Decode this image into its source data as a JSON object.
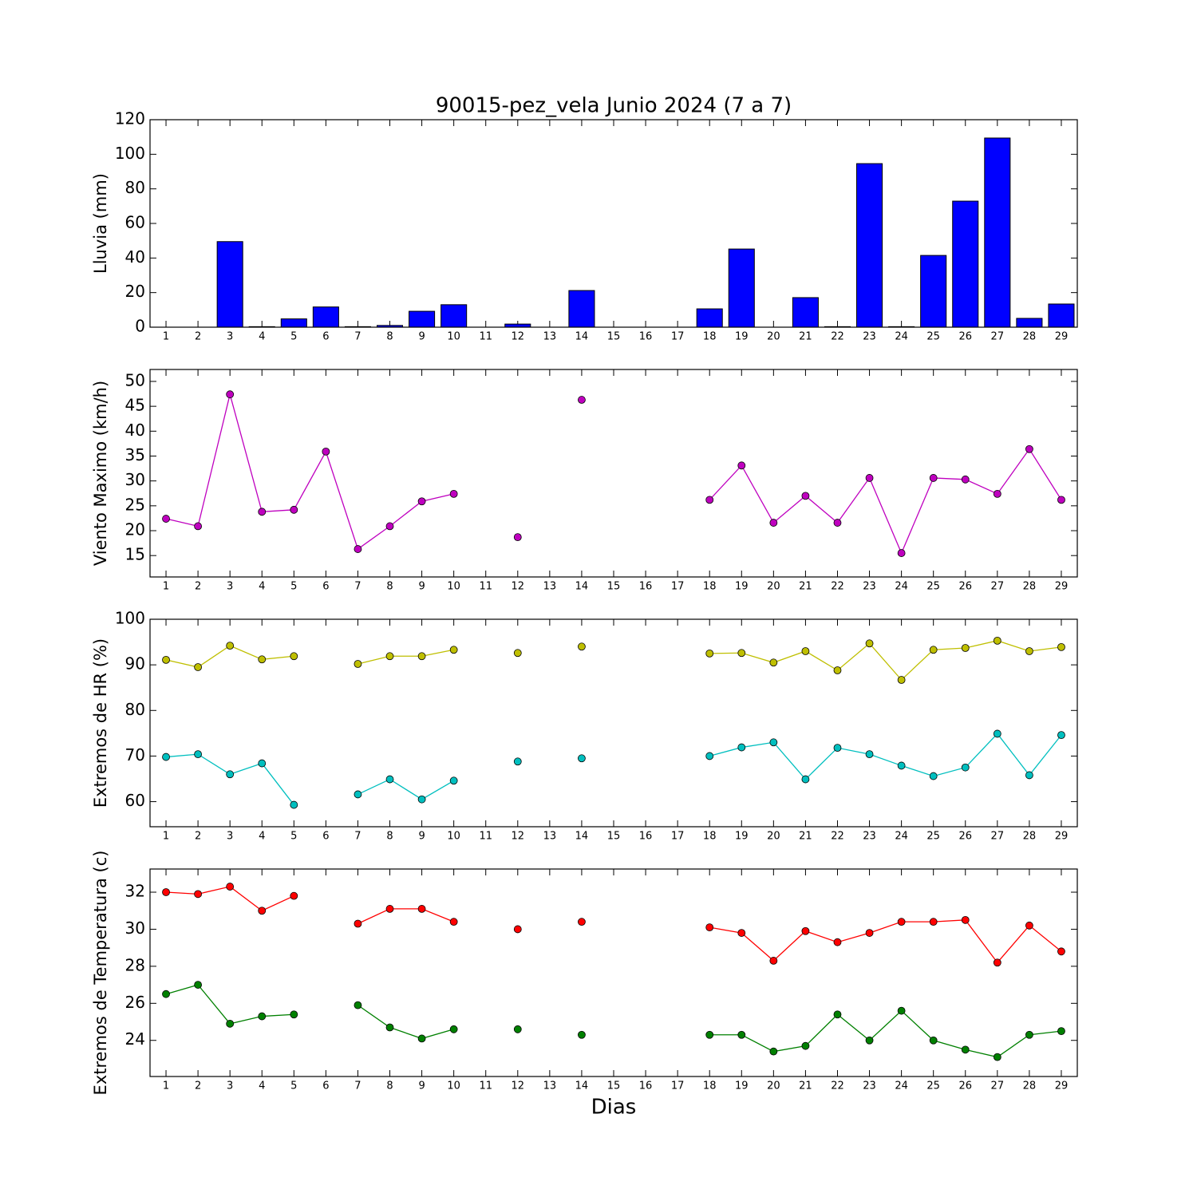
{
  "chart_data": [
    {
      "type": "bar",
      "title": "90015-pez_vela Junio 2024  (7 a 7)",
      "ylabel": "Lluvia (mm)",
      "x": [
        1,
        2,
        3,
        4,
        5,
        6,
        7,
        8,
        9,
        10,
        11,
        12,
        13,
        14,
        15,
        16,
        17,
        18,
        19,
        20,
        21,
        22,
        23,
        24,
        25,
        26,
        27,
        28,
        29
      ],
      "values": [
        0,
        0,
        49.5,
        0.3,
        4.8,
        11.7,
        0.3,
        1.0,
        9.2,
        13.0,
        0,
        1.8,
        0,
        21.2,
        0,
        0,
        0,
        10.6,
        45.2,
        0,
        17.1,
        0.3,
        94.6,
        0.3,
        41.5,
        72.9,
        109.4,
        5.1,
        13.4
      ],
      "color": "#0000ff",
      "xlim": [
        0.5,
        29.5
      ],
      "xticks": [
        1,
        2,
        3,
        4,
        5,
        6,
        7,
        8,
        9,
        10,
        11,
        12,
        13,
        14,
        15,
        16,
        17,
        18,
        19,
        20,
        21,
        22,
        23,
        24,
        25,
        26,
        27,
        28,
        29
      ],
      "ylim": [
        0,
        120
      ],
      "yticks": [
        0,
        20,
        40,
        60,
        80,
        100,
        120
      ]
    },
    {
      "type": "line",
      "ylabel": "Viento Maximo (km/h)",
      "x": [
        1,
        2,
        3,
        4,
        5,
        6,
        7,
        8,
        9,
        10,
        11,
        12,
        13,
        14,
        15,
        16,
        17,
        18,
        19,
        20,
        21,
        22,
        23,
        24,
        25,
        26,
        27,
        28,
        29
      ],
      "series": [
        {
          "color": "#bf00bf",
          "values": [
            22.4,
            20.9,
            47.4,
            23.8,
            24.2,
            35.9,
            16.3,
            20.9,
            25.9,
            27.4,
            null,
            18.7,
            null,
            46.3,
            null,
            null,
            null,
            26.2,
            33.1,
            21.6,
            27.0,
            21.6,
            30.6,
            15.5,
            30.6,
            30.3,
            27.4,
            36.4,
            26.2
          ]
        }
      ],
      "xlim": [
        0.5,
        29.5
      ],
      "xticks": [
        1,
        2,
        3,
        4,
        5,
        6,
        7,
        8,
        9,
        10,
        11,
        12,
        13,
        14,
        15,
        16,
        17,
        18,
        19,
        20,
        21,
        22,
        23,
        24,
        25,
        26,
        27,
        28,
        29
      ],
      "ylim": [
        10.7,
        52.4
      ],
      "yticks": [
        15,
        20,
        25,
        30,
        35,
        40,
        45,
        50
      ]
    },
    {
      "type": "line",
      "ylabel": "Extremos de HR (%)",
      "x": [
        1,
        2,
        3,
        4,
        5,
        6,
        7,
        8,
        9,
        10,
        11,
        12,
        13,
        14,
        15,
        16,
        17,
        18,
        19,
        20,
        21,
        22,
        23,
        24,
        25,
        26,
        27,
        28,
        29
      ],
      "series": [
        {
          "color": "#bfbf00",
          "values": [
            91.1,
            89.5,
            94.2,
            91.2,
            91.9,
            null,
            90.2,
            91.9,
            91.9,
            93.3,
            null,
            92.6,
            null,
            94.0,
            null,
            null,
            null,
            92.5,
            92.6,
            90.5,
            93.0,
            88.8,
            94.7,
            86.7,
            93.3,
            93.7,
            95.3,
            93.0,
            93.9
          ]
        },
        {
          "color": "#00bfbf",
          "values": [
            69.8,
            70.4,
            66.0,
            68.4,
            59.3,
            null,
            61.6,
            64.9,
            60.5,
            64.6,
            null,
            68.8,
            null,
            69.5,
            null,
            null,
            null,
            70.0,
            71.9,
            73.0,
            64.9,
            71.8,
            70.4,
            67.9,
            65.6,
            67.5,
            74.9,
            65.8,
            74.6
          ]
        }
      ],
      "xlim": [
        0.5,
        29.5
      ],
      "xticks": [
        1,
        2,
        3,
        4,
        5,
        6,
        7,
        8,
        9,
        10,
        11,
        12,
        13,
        14,
        15,
        16,
        17,
        18,
        19,
        20,
        21,
        22,
        23,
        24,
        25,
        26,
        27,
        28,
        29
      ],
      "ylim": [
        54.5,
        100
      ],
      "yticks": [
        60,
        70,
        80,
        90,
        100
      ]
    },
    {
      "type": "line",
      "ylabel": "Extremos de Temperatura (c)",
      "xlabel": "Dias",
      "x": [
        1,
        2,
        3,
        4,
        5,
        6,
        7,
        8,
        9,
        10,
        11,
        12,
        13,
        14,
        15,
        16,
        17,
        18,
        19,
        20,
        21,
        22,
        23,
        24,
        25,
        26,
        27,
        28,
        29
      ],
      "series": [
        {
          "color": "#ff0000",
          "values": [
            32.0,
            31.9,
            32.3,
            31.0,
            31.8,
            null,
            30.3,
            31.1,
            31.1,
            30.4,
            null,
            30.0,
            null,
            30.4,
            null,
            null,
            null,
            30.1,
            29.8,
            28.3,
            29.9,
            29.3,
            29.8,
            30.4,
            30.4,
            30.5,
            28.2,
            30.2,
            28.8
          ]
        },
        {
          "color": "#008000",
          "values": [
            26.5,
            27.0,
            24.9,
            25.3,
            25.4,
            null,
            25.9,
            24.7,
            24.1,
            24.6,
            null,
            24.6,
            null,
            24.3,
            null,
            null,
            null,
            24.3,
            24.3,
            23.4,
            23.7,
            25.4,
            24.0,
            25.6,
            24.0,
            23.5,
            23.1,
            24.3,
            24.5
          ]
        }
      ],
      "xlim": [
        0.5,
        29.5
      ],
      "xticks": [
        1,
        2,
        3,
        4,
        5,
        6,
        7,
        8,
        9,
        10,
        11,
        12,
        13,
        14,
        15,
        16,
        17,
        18,
        19,
        20,
        21,
        22,
        23,
        24,
        25,
        26,
        27,
        28,
        29
      ],
      "ylim": [
        22.05,
        33.25
      ],
      "yticks": [
        24,
        26,
        28,
        30,
        32
      ]
    }
  ]
}
